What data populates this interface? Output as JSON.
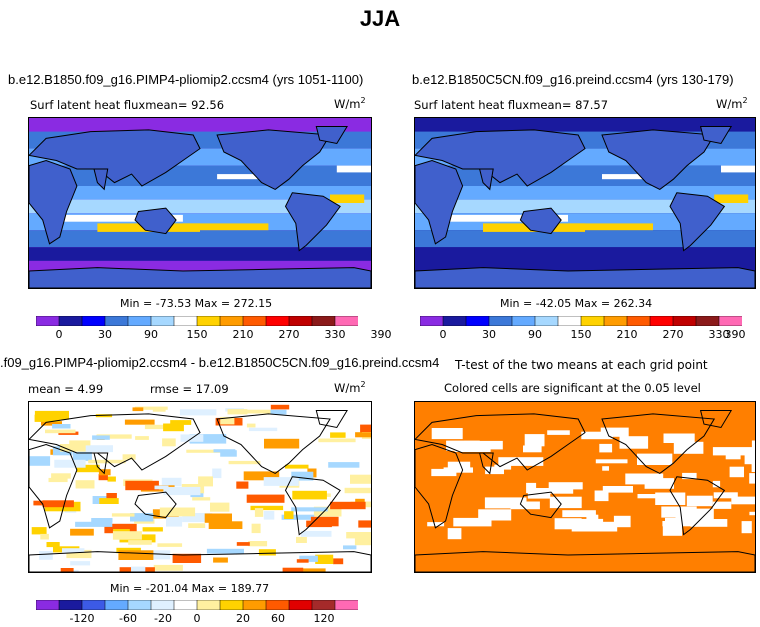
{
  "page_title": "JJA",
  "panels": {
    "top_left": {
      "case_title": "b.e12.B1850.f09_g16.PIMP4-pliomip2.ccsm4 (yrs 1051-1100)",
      "subtitle": "Surf latent heat fluxmean=   92.56",
      "units": "W/m",
      "units_exp": "2",
      "minmax": "Min = -73.53 Max = 272.15"
    },
    "top_right": {
      "case_title": "b.e12.B1850C5CN.f09_g16.preind.ccsm4 (yrs 130-179)",
      "subtitle": "Surf latent heat fluxmean=   87.57",
      "units": "W/m",
      "units_exp": "2",
      "minmax": "Min = -42.05 Max = 262.34"
    },
    "bottom_left": {
      "case_title": ".f09_g16.PIMP4-pliomip2.ccsm4 - b.e12.B1850C5CN.f09_g16.preind.ccsm4",
      "mean_label": "mean =    4.99",
      "rmse_label": "rmse =   17.09",
      "units": "W/m",
      "units_exp": "2",
      "minmax": "Min = -201.04 Max = 189.77"
    },
    "bottom_right": {
      "title_line1": "T-test of the two means at each grid point",
      "title_line2": "Colored cells are significant at the 0.05 level"
    }
  },
  "colors": {
    "field_bar": [
      "#8a2be2",
      "#1a1a9e",
      "#0000ff",
      "#3c78d8",
      "#64aaff",
      "#a6d8ff",
      "#ffffff",
      "#ffd200",
      "#ff9c00",
      "#ff5a00",
      "#ff0000",
      "#c00000",
      "#8b1a1a",
      "#ff69b4"
    ],
    "diff_bar": [
      "#8a2be2",
      "#1a1a9e",
      "#3c5ae6",
      "#64aaff",
      "#a6d8ff",
      "#dff0ff",
      "#ffffff",
      "#fff0a0",
      "#ffd200",
      "#ff9c00",
      "#ff5a00",
      "#e00000",
      "#a52a2a",
      "#ff69b4"
    ],
    "ttest_fill": "#ff7f00"
  },
  "chart_data": [
    {
      "type": "heatmap",
      "name": "",
      "title": "b.e12.B1850.f09_g16.PIMP4-pliomip2.ccsm4 (yrs 1051-1100)",
      "variable": "Surf latent heat flux",
      "mean": 92.56,
      "min": -73.53,
      "max": 272.15,
      "units": "W/m2",
      "colorbar_ticks": [
        "0",
        "30",
        "90",
        "150",
        "210",
        "270",
        "330",
        "390"
      ]
    },
    {
      "type": "heatmap",
      "title": "b.e12.B1850C5CN.f09_g16.preind.ccsm4 (yrs 130-179)",
      "variable": "Surf latent heat flux",
      "mean": 87.57,
      "min": -42.05,
      "max": 262.34,
      "units": "W/m2",
      "colorbar_ticks": [
        "0",
        "30",
        "90",
        "150",
        "210",
        "270",
        "330",
        "390"
      ]
    },
    {
      "type": "heatmap",
      "title": ".f09_g16.PIMP4-pliomip2.ccsm4 - b.e12.B1850C5CN.f09_g16.preind.ccsm4",
      "mean": 4.99,
      "rmse": 17.09,
      "min": -201.04,
      "max": 189.77,
      "units": "W/m2",
      "colorbar_ticks": [
        "-120",
        "-60",
        "-20",
        "0",
        "20",
        "60",
        "120"
      ]
    },
    {
      "type": "heatmap",
      "title": "T-test of the two means at each grid point",
      "note": "Colored cells are significant at the 0.05 level",
      "significance_level": 0.05
    }
  ]
}
